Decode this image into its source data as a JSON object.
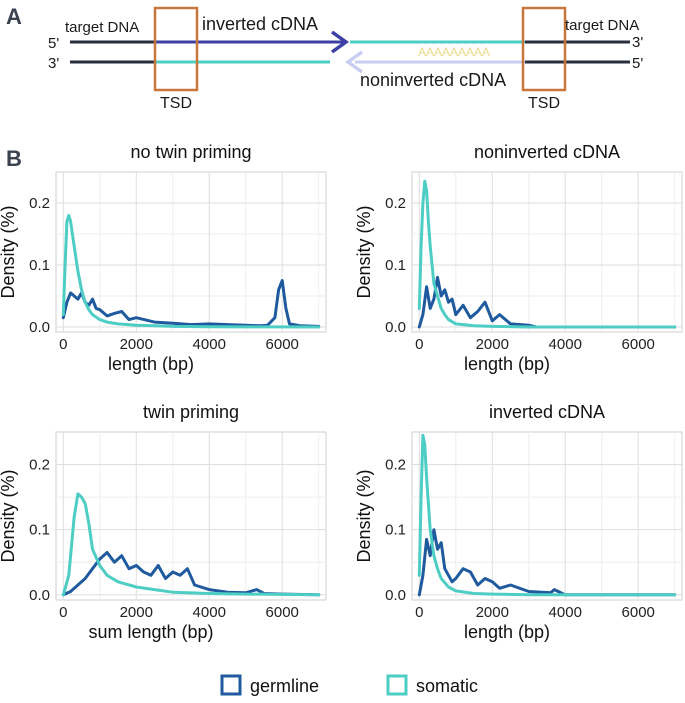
{
  "panel_a": {
    "letter": "A",
    "target_dna_left": "target DNA",
    "target_dna_right": "target DNA",
    "five_prime_left": "5'",
    "three_prime_left": "3'",
    "three_prime_right": "3'",
    "five_prime_right": "5'",
    "inverted_cdna": "inverted cDNA",
    "noninverted_cdna": "noninverted cDNA",
    "poly_a": "AAAAAAAAA",
    "tsd_left": "TSD",
    "tsd_right": "TSD",
    "colors": {
      "dna": "#2a2e3e",
      "inverted": "#3b3fa6",
      "noninverted": "#c8cdf2",
      "teal": "#4ecdc4",
      "tsd": "#c8773a",
      "polya": "#f2e6a6"
    }
  },
  "panel_b": {
    "letter": "B"
  },
  "colors": {
    "germline": "#1f5a9e",
    "somatic": "#4ecdc4"
  },
  "legend": {
    "germline": "germline",
    "somatic": "somatic"
  },
  "chart_data": [
    {
      "type": "line",
      "title": "no twin priming",
      "xlabel": "length (bp)",
      "ylabel": "Density (%)",
      "xlim": [
        -200,
        7200
      ],
      "ylim": [
        -0.008,
        0.25
      ],
      "xticks": [
        0,
        2000,
        4000,
        6000
      ],
      "yticks": [
        0.0,
        0.1,
        0.2
      ],
      "ytick_labels": [
        "0.0",
        "0.1",
        "0.2"
      ],
      "series": [
        {
          "name": "germline",
          "x": [
            0,
            100,
            200,
            300,
            400,
            500,
            600,
            700,
            800,
            900,
            1000,
            1200,
            1400,
            1600,
            1800,
            2000,
            2500,
            3000,
            3500,
            4000,
            4500,
            5000,
            5400,
            5600,
            5800,
            5900,
            6000,
            6100,
            6200,
            6500,
            7000
          ],
          "y": [
            0.015,
            0.04,
            0.055,
            0.05,
            0.045,
            0.055,
            0.04,
            0.035,
            0.045,
            0.03,
            0.028,
            0.018,
            0.022,
            0.025,
            0.012,
            0.015,
            0.008,
            0.006,
            0.004,
            0.005,
            0.004,
            0.003,
            0.002,
            0.003,
            0.015,
            0.06,
            0.075,
            0.03,
            0.005,
            0.002,
            0.001
          ]
        },
        {
          "name": "somatic",
          "x": [
            0,
            50,
            100,
            150,
            200,
            300,
            400,
            500,
            600,
            700,
            800,
            1000,
            1200,
            1500,
            2000,
            2500,
            3000,
            4000,
            5000,
            6000,
            7000
          ],
          "y": [
            0.02,
            0.1,
            0.17,
            0.18,
            0.17,
            0.13,
            0.09,
            0.06,
            0.04,
            0.028,
            0.02,
            0.012,
            0.008,
            0.005,
            0.003,
            0.002,
            0.001,
            0.0005,
            0.0003,
            0.0002,
            0.0001
          ]
        }
      ]
    },
    {
      "type": "line",
      "title": "noninverted cDNA",
      "xlabel": "length (bp)",
      "ylabel": "Density (%)",
      "xlim": [
        -200,
        7200
      ],
      "ylim": [
        -0.008,
        0.25
      ],
      "xticks": [
        0,
        2000,
        4000,
        6000
      ],
      "yticks": [
        0.0,
        0.1,
        0.2
      ],
      "ytick_labels": [
        "0.0",
        "0.1",
        "0.2"
      ],
      "series": [
        {
          "name": "germline",
          "x": [
            0,
            100,
            200,
            300,
            400,
            500,
            600,
            700,
            800,
            900,
            1000,
            1200,
            1400,
            1600,
            1800,
            2000,
            2200,
            2500,
            3000,
            3200,
            4000,
            7000
          ],
          "y": [
            0.0,
            0.02,
            0.065,
            0.03,
            0.045,
            0.08,
            0.05,
            0.06,
            0.04,
            0.045,
            0.02,
            0.035,
            0.015,
            0.025,
            0.04,
            0.01,
            0.02,
            0.005,
            0.003,
            0.0,
            0.0,
            0.0
          ]
        },
        {
          "name": "somatic",
          "x": [
            0,
            50,
            100,
            150,
            200,
            250,
            300,
            350,
            400,
            500,
            600,
            700,
            800,
            1000,
            1500,
            2000,
            3000,
            7000
          ],
          "y": [
            0.03,
            0.13,
            0.2,
            0.235,
            0.22,
            0.17,
            0.13,
            0.1,
            0.07,
            0.05,
            0.03,
            0.02,
            0.012,
            0.005,
            0.002,
            0.001,
            0.0,
            0.0
          ]
        }
      ]
    },
    {
      "type": "line",
      "title": "twin priming",
      "xlabel": "sum length (bp)",
      "ylabel": "Density (%)",
      "xlim": [
        -200,
        7200
      ],
      "ylim": [
        -0.008,
        0.25
      ],
      "xticks": [
        0,
        2000,
        4000,
        6000
      ],
      "yticks": [
        0.0,
        0.1,
        0.2
      ],
      "ytick_labels": [
        "0.0",
        "0.1",
        "0.2"
      ],
      "series": [
        {
          "name": "germline",
          "x": [
            0,
            200,
            400,
            600,
            800,
            1000,
            1200,
            1400,
            1600,
            1800,
            2000,
            2200,
            2400,
            2600,
            2800,
            3000,
            3200,
            3400,
            3600,
            4000,
            4500,
            5000,
            5300,
            5500,
            6000,
            7000
          ],
          "y": [
            0.0,
            0.005,
            0.015,
            0.025,
            0.04,
            0.055,
            0.065,
            0.05,
            0.06,
            0.04,
            0.045,
            0.035,
            0.03,
            0.045,
            0.025,
            0.035,
            0.03,
            0.04,
            0.015,
            0.008,
            0.004,
            0.003,
            0.008,
            0.002,
            0.001,
            0.0
          ]
        },
        {
          "name": "somatic",
          "x": [
            0,
            150,
            300,
            400,
            500,
            600,
            700,
            800,
            1000,
            1200,
            1500,
            2000,
            2500,
            3000,
            4000,
            5000,
            7000
          ],
          "y": [
            0.0,
            0.03,
            0.12,
            0.155,
            0.15,
            0.14,
            0.11,
            0.07,
            0.045,
            0.03,
            0.02,
            0.012,
            0.008,
            0.004,
            0.002,
            0.001,
            0.0
          ]
        }
      ]
    },
    {
      "type": "line",
      "title": "inverted cDNA",
      "xlabel": "length (bp)",
      "ylabel": "Density (%)",
      "xlim": [
        -200,
        7200
      ],
      "ylim": [
        -0.008,
        0.25
      ],
      "xticks": [
        0,
        2000,
        4000,
        6000
      ],
      "yticks": [
        0.0,
        0.1,
        0.2
      ],
      "ytick_labels": [
        "0.0",
        "0.1",
        "0.2"
      ],
      "series": [
        {
          "name": "germline",
          "x": [
            0,
            100,
            200,
            300,
            400,
            500,
            600,
            700,
            800,
            900,
            1000,
            1200,
            1400,
            1600,
            1800,
            2000,
            2200,
            2500,
            3000,
            3600,
            3700,
            4000,
            7000
          ],
          "y": [
            0.0,
            0.03,
            0.085,
            0.06,
            0.1,
            0.07,
            0.08,
            0.04,
            0.03,
            0.02,
            0.025,
            0.04,
            0.035,
            0.015,
            0.025,
            0.02,
            0.01,
            0.015,
            0.005,
            0.003,
            0.008,
            0.0,
            0.0
          ]
        },
        {
          "name": "somatic",
          "x": [
            0,
            50,
            100,
            150,
            200,
            250,
            300,
            400,
            500,
            600,
            800,
            1000,
            1500,
            2000,
            3000,
            7000
          ],
          "y": [
            0.03,
            0.15,
            0.245,
            0.23,
            0.18,
            0.14,
            0.1,
            0.06,
            0.04,
            0.025,
            0.012,
            0.006,
            0.002,
            0.001,
            0.0,
            0.0
          ]
        }
      ]
    }
  ]
}
